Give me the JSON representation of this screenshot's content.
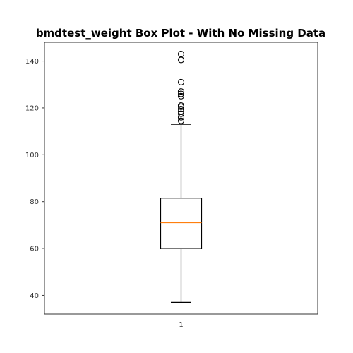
{
  "chart_data": {
    "type": "box",
    "title": "bmdtest_weight Box Plot - With No Missing Data",
    "xlabel": "",
    "ylabel": "",
    "categories": [
      "1"
    ],
    "ylim": [
      32,
      148
    ],
    "yticks": [
      40,
      60,
      80,
      100,
      120,
      140
    ],
    "grid": false,
    "boxes": [
      {
        "category": "1",
        "whisker_low": 37,
        "q1": 60,
        "median": 71,
        "q3": 81.5,
        "whisker_high": 113,
        "outliers": [
          114.5,
          116,
          117.5,
          118.5,
          119.5,
          120.5,
          121,
          125,
          126,
          127,
          131,
          140.5,
          143
        ]
      }
    ],
    "colors": {
      "box": "#000000",
      "median": "#ff7f0e",
      "outlier": "#000000"
    }
  }
}
